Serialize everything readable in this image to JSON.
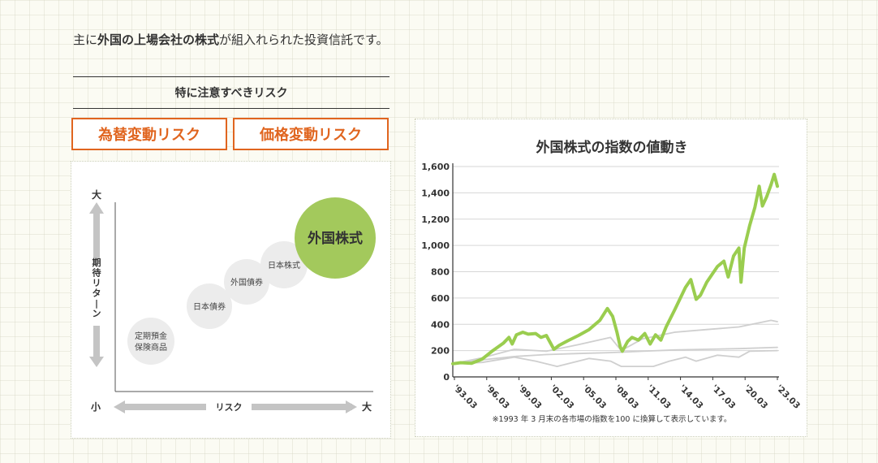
{
  "intro": {
    "p1": "主に",
    "b1": "外国の上場会社の株式",
    "p2": "が組入れられた投資信託です。"
  },
  "risk": {
    "heading": "特に注意すべきリスク",
    "items": [
      "為替変動リスク",
      "価格変動リスク"
    ]
  },
  "risk_return": {
    "y_axis": {
      "top": "大",
      "bottom": "小",
      "label": "期待リターン"
    },
    "x_axis": {
      "left": "小",
      "right": "大",
      "label": "リスク"
    },
    "bubbles": [
      {
        "lines": [
          "定期預金",
          "保険商品"
        ],
        "highlight": false
      },
      {
        "lines": [
          "日本債券"
        ],
        "highlight": false
      },
      {
        "lines": [
          "外国債券"
        ],
        "highlight": false
      },
      {
        "lines": [
          "日本株式"
        ],
        "highlight": false
      },
      {
        "lines": [
          "外国株式"
        ],
        "highlight": true
      }
    ],
    "colors": {
      "bubble": "#ececec",
      "highlight": "#a3c95c",
      "arrow": "#c4c4c4"
    }
  },
  "chart_data": {
    "type": "line",
    "title": "外国株式の指数の値動き",
    "note": "※1993 年 3 月末の各市場の指数を100 に換算して表示しています。",
    "x_ticks": [
      "'93.03",
      "'96.03",
      "'99.03",
      "'02.03",
      "'05.03",
      "'08.03",
      "'11.03",
      "'14.03",
      "'17.03",
      "'20.03",
      "'23.03"
    ],
    "y_ticks": [
      "0",
      "200",
      "400",
      "600",
      "800",
      "1,000",
      "1,200",
      "1,400",
      "1,600"
    ],
    "ylim": [
      0,
      1600
    ],
    "xlim": [
      1993.25,
      2023.75
    ],
    "series": [
      {
        "color": "#9acd4f",
        "emphasis": true,
        "points": [
          [
            1993.25,
            100
          ],
          [
            1994.0,
            108
          ],
          [
            1995.0,
            104
          ],
          [
            1996.0,
            135
          ],
          [
            1997.0,
            200
          ],
          [
            1998.0,
            258
          ],
          [
            1998.5,
            300
          ],
          [
            1998.8,
            250
          ],
          [
            1999.2,
            320
          ],
          [
            1999.8,
            340
          ],
          [
            2000.3,
            325
          ],
          [
            2001.0,
            330
          ],
          [
            2001.5,
            300
          ],
          [
            2002.0,
            315
          ],
          [
            2002.7,
            210
          ],
          [
            2003.2,
            240
          ],
          [
            2004.0,
            275
          ],
          [
            2005.0,
            315
          ],
          [
            2006.0,
            360
          ],
          [
            2007.0,
            430
          ],
          [
            2007.7,
            520
          ],
          [
            2008.2,
            460
          ],
          [
            2008.6,
            340
          ],
          [
            2008.9,
            230
          ],
          [
            2009.1,
            195
          ],
          [
            2009.6,
            270
          ],
          [
            2010.0,
            300
          ],
          [
            2010.6,
            280
          ],
          [
            2011.2,
            330
          ],
          [
            2011.7,
            250
          ],
          [
            2012.2,
            320
          ],
          [
            2012.7,
            280
          ],
          [
            2013.2,
            380
          ],
          [
            2014.0,
            510
          ],
          [
            2015.0,
            680
          ],
          [
            2015.5,
            740
          ],
          [
            2016.0,
            590
          ],
          [
            2016.4,
            620
          ],
          [
            2017.0,
            720
          ],
          [
            2018.0,
            840
          ],
          [
            2018.6,
            880
          ],
          [
            2019.0,
            760
          ],
          [
            2019.5,
            920
          ],
          [
            2020.0,
            980
          ],
          [
            2020.2,
            720
          ],
          [
            2020.5,
            980
          ],
          [
            2021.0,
            1150
          ],
          [
            2021.5,
            1290
          ],
          [
            2021.9,
            1450
          ],
          [
            2022.2,
            1300
          ],
          [
            2022.6,
            1370
          ],
          [
            2023.0,
            1460
          ],
          [
            2023.3,
            1540
          ],
          [
            2023.6,
            1450
          ]
        ]
      },
      {
        "color": "#cfcfcf",
        "emphasis": false,
        "points": [
          [
            1993.25,
            100
          ],
          [
            1996.0,
            145
          ],
          [
            1999.0,
            210
          ],
          [
            2002.0,
            195
          ],
          [
            2005.0,
            245
          ],
          [
            2008.0,
            300
          ],
          [
            2009.0,
            200
          ],
          [
            2011.0,
            290
          ],
          [
            2014.0,
            340
          ],
          [
            2017.0,
            360
          ],
          [
            2020.0,
            380
          ],
          [
            2023.0,
            430
          ],
          [
            2023.6,
            420
          ]
        ]
      },
      {
        "color": "#cfcfcf",
        "emphasis": false,
        "points": [
          [
            1993.25,
            100
          ],
          [
            1996.0,
            130
          ],
          [
            1999.0,
            155
          ],
          [
            2002.0,
            170
          ],
          [
            2005.0,
            178
          ],
          [
            2008.0,
            185
          ],
          [
            2011.0,
            195
          ],
          [
            2014.0,
            205
          ],
          [
            2017.0,
            210
          ],
          [
            2020.0,
            215
          ],
          [
            2023.6,
            225
          ]
        ]
      },
      {
        "color": "#cfcfcf",
        "emphasis": false,
        "points": [
          [
            1993.25,
            100
          ],
          [
            1996.0,
            110
          ],
          [
            1999.0,
            150
          ],
          [
            2001.0,
            120
          ],
          [
            2003.0,
            80
          ],
          [
            2006.0,
            140
          ],
          [
            2008.0,
            120
          ],
          [
            2009.0,
            80
          ],
          [
            2012.0,
            80
          ],
          [
            2013.5,
            120
          ],
          [
            2015.0,
            150
          ],
          [
            2016.0,
            120
          ],
          [
            2018.0,
            165
          ],
          [
            2020.0,
            150
          ],
          [
            2021.0,
            195
          ],
          [
            2023.6,
            200
          ]
        ]
      }
    ]
  }
}
